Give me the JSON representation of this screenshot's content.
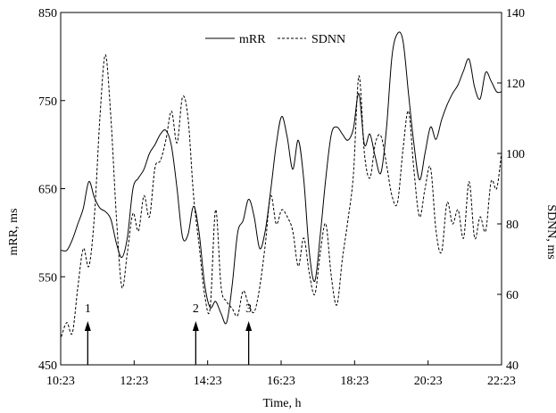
{
  "chart_data": {
    "type": "line",
    "title": "",
    "xlabel": "Time, h",
    "ylabel_left": "mRR, ms",
    "ylabel_right": "SDNN, ms",
    "x_unit": "hours",
    "x_ticks": [
      {
        "x": 10.3833,
        "label": "10:23"
      },
      {
        "x": 12.3833,
        "label": "12:23"
      },
      {
        "x": 14.3833,
        "label": "14:23"
      },
      {
        "x": 16.3833,
        "label": "16:23"
      },
      {
        "x": 18.3833,
        "label": "18:23"
      },
      {
        "x": 20.3833,
        "label": "20:23"
      },
      {
        "x": 22.3833,
        "label": "22:23"
      }
    ],
    "xlim": [
      10.3833,
      22.3833
    ],
    "ylim_left": [
      450,
      850
    ],
    "ylim_right": [
      40,
      140
    ],
    "yticks_left": [
      450,
      550,
      650,
      750,
      850
    ],
    "yticks_right": [
      40,
      60,
      80,
      100,
      120,
      140
    ],
    "grid": false,
    "legend": {
      "position": "top-center",
      "entries": [
        "mRR",
        "SDNN"
      ]
    },
    "series": [
      {
        "name": "mRR",
        "axis": "left",
        "style": "solid",
        "x": [
          10.4,
          10.55,
          10.7,
          10.85,
          11.0,
          11.15,
          11.3,
          11.45,
          11.6,
          11.75,
          11.9,
          12.05,
          12.2,
          12.35,
          12.5,
          12.65,
          12.8,
          12.95,
          13.1,
          13.25,
          13.4,
          13.55,
          13.7,
          13.85,
          14.0,
          14.15,
          14.3,
          14.45,
          14.6,
          14.75,
          14.9,
          15.05,
          15.2,
          15.35,
          15.5,
          15.65,
          15.8,
          15.95,
          16.1,
          16.25,
          16.4,
          16.55,
          16.7,
          16.85,
          17.0,
          17.15,
          17.3,
          17.45,
          17.6,
          17.75,
          17.9,
          18.05,
          18.2,
          18.35,
          18.5,
          18.65,
          18.8,
          18.95,
          19.1,
          19.25,
          19.4,
          19.55,
          19.7,
          19.85,
          20.0,
          20.15,
          20.3,
          20.45,
          20.6,
          20.75,
          20.9,
          21.05,
          21.2,
          21.35,
          21.5,
          21.65,
          21.8,
          21.95,
          22.1,
          22.25,
          22.38
        ],
        "values": [
          580,
          580,
          592,
          610,
          628,
          658,
          640,
          628,
          624,
          615,
          588,
          572,
          595,
          650,
          662,
          672,
          690,
          700,
          712,
          716,
          698,
          650,
          595,
          598,
          630,
          600,
          542,
          515,
          522,
          508,
          498,
          540,
          600,
          614,
          638,
          618,
          582,
          602,
          648,
          700,
          732,
          708,
          672,
          705,
          660,
          578,
          545,
          598,
          662,
          712,
          720,
          712,
          705,
          718,
          758,
          700,
          712,
          685,
          668,
          718,
          800,
          826,
          818,
          758,
          700,
          660,
          690,
          720,
          706,
          728,
          745,
          758,
          768,
          784,
          797,
          765,
          752,
          782,
          772,
          760,
          760
        ]
      },
      {
        "name": "SDNN",
        "axis": "right",
        "style": "dashed",
        "x": [
          10.4,
          10.55,
          10.7,
          10.85,
          11.0,
          11.15,
          11.3,
          11.45,
          11.6,
          11.75,
          11.9,
          12.05,
          12.2,
          12.35,
          12.5,
          12.65,
          12.8,
          12.95,
          13.1,
          13.25,
          13.4,
          13.55,
          13.7,
          13.85,
          14.0,
          14.15,
          14.3,
          14.45,
          14.6,
          14.75,
          14.9,
          15.05,
          15.2,
          15.35,
          15.5,
          15.65,
          15.8,
          15.95,
          16.1,
          16.25,
          16.4,
          16.55,
          16.7,
          16.85,
          17.0,
          17.15,
          17.3,
          17.45,
          17.6,
          17.75,
          17.9,
          18.05,
          18.2,
          18.35,
          18.5,
          18.65,
          18.8,
          18.95,
          19.1,
          19.25,
          19.4,
          19.55,
          19.7,
          19.85,
          20.0,
          20.15,
          20.3,
          20.45,
          20.6,
          20.75,
          20.9,
          21.05,
          21.2,
          21.35,
          21.5,
          21.65,
          21.8,
          21.95,
          22.1,
          22.25,
          22.38
        ],
        "values": [
          48,
          52,
          49,
          62,
          73,
          68,
          82,
          110,
          128,
          110,
          82,
          62,
          72,
          83,
          78,
          88,
          82,
          96,
          98,
          104,
          112,
          103,
          116,
          110,
          88,
          74,
          60,
          56,
          84,
          62,
          58,
          56,
          54,
          61,
          57,
          55,
          62,
          74,
          88,
          80,
          84,
          82,
          78,
          68,
          76,
          66,
          60,
          72,
          80,
          65,
          57,
          70,
          81,
          94,
          122,
          100,
          93,
          103,
          105,
          97,
          88,
          86,
          101,
          112,
          95,
          82,
          90,
          96,
          78,
          72,
          86,
          80,
          84,
          76,
          92,
          76,
          82,
          78,
          92,
          90,
          100
        ]
      }
    ],
    "annotations": [
      {
        "label": "1",
        "x": 11.12
      },
      {
        "label": "2",
        "x": 14.06
      },
      {
        "label": "3",
        "x": 15.5
      }
    ]
  }
}
